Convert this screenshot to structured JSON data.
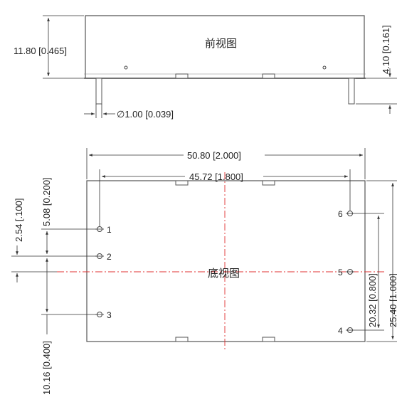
{
  "front_view": {
    "title": "前视图",
    "height_dim": "11.80 [0.465]",
    "pin_length_dim": "4.10 [0.161]",
    "pin_diameter_dim": "∅1.00 [0.039]"
  },
  "bottom_view": {
    "title": "底视图",
    "width_dim": "50.80 [2.000]",
    "pin_span_dim": "45.72 [1.800]",
    "left_dim_1": "2.54 [.100]",
    "left_dim_2": "5.08 [0.200]",
    "left_dim_3": "10.16 [0.400]",
    "right_dim_1": "20.32 [0.800]",
    "right_dim_2": "25.40 [1.000]",
    "pins": [
      "1",
      "2",
      "3",
      "4",
      "5",
      "6"
    ]
  }
}
